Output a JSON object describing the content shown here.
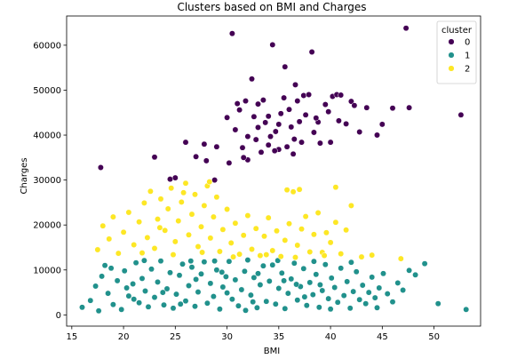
{
  "chart_data": {
    "type": "scatter",
    "title": "Clusters based on BMI and Charges",
    "xlabel": "BMI",
    "ylabel": "Charges",
    "xlim": [
      14.5,
      54.5
    ],
    "ylim": [
      -2500,
      66500
    ],
    "xticks": [
      15,
      20,
      25,
      30,
      35,
      40,
      45,
      50
    ],
    "yticks": [
      0,
      10000,
      20000,
      30000,
      40000,
      50000,
      60000
    ],
    "xtick_labels": [
      "15",
      "20",
      "25",
      "30",
      "35",
      "40",
      "45",
      "50"
    ],
    "ytick_labels": [
      "0",
      "10000",
      "20000",
      "30000",
      "40000",
      "50000",
      "60000"
    ],
    "grid": false,
    "legend": {
      "title": "cluster",
      "placement": "top-right",
      "entries": [
        "0",
        "1",
        "2"
      ]
    },
    "series": [
      {
        "name": "0",
        "color": "#440154",
        "points": [
          [
            17.8,
            32800
          ],
          [
            23.0,
            35100
          ],
          [
            24.5,
            30200
          ],
          [
            25.0,
            30500
          ],
          [
            26.0,
            38400
          ],
          [
            27.0,
            35200
          ],
          [
            27.8,
            38000
          ],
          [
            28.0,
            34300
          ],
          [
            28.8,
            30000
          ],
          [
            29.0,
            37400
          ],
          [
            30.0,
            43900
          ],
          [
            30.5,
            62600
          ],
          [
            30.8,
            41200
          ],
          [
            31.0,
            47000
          ],
          [
            31.2,
            45600
          ],
          [
            31.5,
            37200
          ],
          [
            31.8,
            47600
          ],
          [
            32.0,
            34500
          ],
          [
            32.0,
            39700
          ],
          [
            32.4,
            52500
          ],
          [
            32.6,
            44100
          ],
          [
            33.0,
            46900
          ],
          [
            33.0,
            41700
          ],
          [
            33.3,
            36200
          ],
          [
            33.5,
            47800
          ],
          [
            33.7,
            42800
          ],
          [
            34.0,
            37800
          ],
          [
            34.0,
            44200
          ],
          [
            34.2,
            39700
          ],
          [
            34.4,
            60100
          ],
          [
            34.7,
            40800
          ],
          [
            35.0,
            36800
          ],
          [
            35.0,
            42400
          ],
          [
            35.2,
            44800
          ],
          [
            35.5,
            48300
          ],
          [
            35.6,
            55200
          ],
          [
            35.8,
            37400
          ],
          [
            36.0,
            45700
          ],
          [
            36.2,
            41800
          ],
          [
            36.5,
            39100
          ],
          [
            36.6,
            51200
          ],
          [
            36.8,
            47600
          ],
          [
            37.0,
            43000
          ],
          [
            37.2,
            38400
          ],
          [
            37.4,
            48800
          ],
          [
            37.6,
            44500
          ],
          [
            37.9,
            49000
          ],
          [
            38.2,
            58500
          ],
          [
            38.4,
            40600
          ],
          [
            38.8,
            42900
          ],
          [
            39.0,
            38200
          ],
          [
            39.5,
            46800
          ],
          [
            40.0,
            38400
          ],
          [
            40.2,
            48600
          ],
          [
            40.6,
            49000
          ],
          [
            40.8,
            43200
          ],
          [
            41.0,
            48900
          ],
          [
            41.5,
            42500
          ],
          [
            42.0,
            47500
          ],
          [
            42.3,
            46600
          ],
          [
            42.8,
            40700
          ],
          [
            43.5,
            46100
          ],
          [
            44.5,
            40000
          ],
          [
            45.0,
            42400
          ],
          [
            46.0,
            46000
          ],
          [
            47.3,
            63800
          ],
          [
            47.6,
            46100
          ],
          [
            52.6,
            44500
          ],
          [
            30.2,
            33800
          ],
          [
            31.6,
            35000
          ],
          [
            32.8,
            39000
          ],
          [
            34.6,
            36500
          ],
          [
            36.4,
            35800
          ],
          [
            38.6,
            43800
          ],
          [
            39.8,
            45200
          ]
        ]
      },
      {
        "name": "1",
        "color": "#21918c",
        "points": [
          [
            16.0,
            1700
          ],
          [
            16.8,
            3200
          ],
          [
            17.3,
            6400
          ],
          [
            17.6,
            900
          ],
          [
            17.9,
            8600
          ],
          [
            18.2,
            11000
          ],
          [
            18.5,
            4800
          ],
          [
            19.0,
            2300
          ],
          [
            19.4,
            7600
          ],
          [
            19.8,
            1200
          ],
          [
            20.1,
            9800
          ],
          [
            20.5,
            4200
          ],
          [
            20.9,
            6900
          ],
          [
            21.2,
            11600
          ],
          [
            21.5,
            2700
          ],
          [
            21.8,
            8100
          ],
          [
            22.1,
            5300
          ],
          [
            22.4,
            1800
          ],
          [
            22.7,
            10200
          ],
          [
            23.0,
            3900
          ],
          [
            23.3,
            7300
          ],
          [
            23.6,
            12000
          ],
          [
            23.9,
            2200
          ],
          [
            24.2,
            5800
          ],
          [
            24.5,
            9400
          ],
          [
            24.8,
            1500
          ],
          [
            25.1,
            4600
          ],
          [
            25.4,
            8800
          ],
          [
            25.7,
            11300
          ],
          [
            26.0,
            3100
          ],
          [
            26.3,
            6500
          ],
          [
            26.6,
            10600
          ],
          [
            26.9,
            1900
          ],
          [
            27.2,
            5100
          ],
          [
            27.5,
            9100
          ],
          [
            27.8,
            11800
          ],
          [
            28.1,
            2600
          ],
          [
            28.4,
            7000
          ],
          [
            28.7,
            4100
          ],
          [
            29.0,
            10000
          ],
          [
            29.3,
            1300
          ],
          [
            29.6,
            6200
          ],
          [
            29.9,
            8500
          ],
          [
            30.2,
            11900
          ],
          [
            30.5,
            3500
          ],
          [
            30.8,
            7800
          ],
          [
            31.1,
            2000
          ],
          [
            31.4,
            5600
          ],
          [
            31.7,
            9700
          ],
          [
            32.0,
            12200
          ],
          [
            32.3,
            4400
          ],
          [
            32.6,
            8300
          ],
          [
            32.9,
            1600
          ],
          [
            33.2,
            6700
          ],
          [
            33.5,
            10900
          ],
          [
            33.8,
            3000
          ],
          [
            34.1,
            7500
          ],
          [
            34.4,
            11100
          ],
          [
            34.7,
            2400
          ],
          [
            35.0,
            5900
          ],
          [
            35.3,
            9300
          ],
          [
            35.6,
            1400
          ],
          [
            35.9,
            4800
          ],
          [
            36.2,
            8000
          ],
          [
            36.5,
            11500
          ],
          [
            36.8,
            3300
          ],
          [
            37.1,
            6300
          ],
          [
            37.4,
            10300
          ],
          [
            37.7,
            2100
          ],
          [
            38.0,
            7200
          ],
          [
            38.3,
            4500
          ],
          [
            38.6,
            9000
          ],
          [
            38.9,
            1700
          ],
          [
            39.2,
            5400
          ],
          [
            39.5,
            11200
          ],
          [
            39.8,
            3600
          ],
          [
            40.1,
            8200
          ],
          [
            40.4,
            6100
          ],
          [
            40.7,
            2800
          ],
          [
            41.0,
            10400
          ],
          [
            41.3,
            4300
          ],
          [
            41.6,
            7400
          ],
          [
            41.9,
            1500
          ],
          [
            42.2,
            5200
          ],
          [
            42.5,
            9600
          ],
          [
            42.8,
            3400
          ],
          [
            43.1,
            6600
          ],
          [
            43.4,
            2500
          ],
          [
            43.7,
            5000
          ],
          [
            44.0,
            8400
          ],
          [
            44.3,
            3800
          ],
          [
            44.7,
            6000
          ],
          [
            45.1,
            9200
          ],
          [
            45.5,
            4700
          ],
          [
            46.0,
            2900
          ],
          [
            46.5,
            7100
          ],
          [
            47.0,
            5500
          ],
          [
            47.6,
            9900
          ],
          [
            48.2,
            8900
          ],
          [
            49.1,
            11400
          ],
          [
            50.4,
            2500
          ],
          [
            53.1,
            1200
          ],
          [
            18.8,
            10400
          ],
          [
            20.3,
            6000
          ],
          [
            22.0,
            12100
          ],
          [
            23.8,
            5000
          ],
          [
            25.5,
            2400
          ],
          [
            27.0,
            7900
          ],
          [
            28.8,
            12000
          ],
          [
            30.0,
            4900
          ],
          [
            31.8,
            1000
          ],
          [
            33.0,
            9200
          ],
          [
            34.9,
            12100
          ],
          [
            36.7,
            6800
          ],
          [
            38.4,
            11900
          ],
          [
            40.0,
            1300
          ],
          [
            42.0,
            11700
          ],
          [
            44.5,
            1600
          ],
          [
            21.0,
            3500
          ],
          [
            26.5,
            12000
          ],
          [
            29.5,
            9500
          ],
          [
            32.5,
            2900
          ],
          [
            35.5,
            7600
          ],
          [
            37.5,
            4000
          ],
          [
            39.0,
            6700
          ]
        ]
      },
      {
        "name": "2",
        "color": "#fde725",
        "points": [
          [
            17.5,
            14500
          ],
          [
            18.0,
            19800
          ],
          [
            18.6,
            16900
          ],
          [
            19.0,
            21800
          ],
          [
            19.5,
            13700
          ],
          [
            20.0,
            18400
          ],
          [
            20.5,
            22800
          ],
          [
            21.0,
            15600
          ],
          [
            21.5,
            20700
          ],
          [
            22.0,
            24900
          ],
          [
            22.3,
            17200
          ],
          [
            22.6,
            27500
          ],
          [
            23.0,
            14800
          ],
          [
            23.3,
            21300
          ],
          [
            23.6,
            25800
          ],
          [
            24.0,
            18800
          ],
          [
            24.3,
            23600
          ],
          [
            24.6,
            28200
          ],
          [
            25.0,
            16300
          ],
          [
            25.3,
            20900
          ],
          [
            25.6,
            25100
          ],
          [
            26.0,
            29300
          ],
          [
            26.3,
            17800
          ],
          [
            26.6,
            22400
          ],
          [
            26.9,
            26800
          ],
          [
            27.2,
            15200
          ],
          [
            27.5,
            19600
          ],
          [
            27.8,
            24300
          ],
          [
            28.1,
            28700
          ],
          [
            28.4,
            17100
          ],
          [
            28.7,
            21800
          ],
          [
            29.0,
            26200
          ],
          [
            29.3,
            14100
          ],
          [
            29.6,
            19000
          ],
          [
            30.0,
            23500
          ],
          [
            30.4,
            16000
          ],
          [
            30.8,
            20400
          ],
          [
            31.2,
            13500
          ],
          [
            31.6,
            17700
          ],
          [
            32.0,
            22100
          ],
          [
            32.4,
            14600
          ],
          [
            32.8,
            19200
          ],
          [
            33.2,
            13200
          ],
          [
            33.6,
            17500
          ],
          [
            34.0,
            21600
          ],
          [
            34.4,
            14300
          ],
          [
            34.8,
            18700
          ],
          [
            35.2,
            13000
          ],
          [
            35.6,
            16600
          ],
          [
            36.0,
            20300
          ],
          [
            36.4,
            27400
          ],
          [
            36.8,
            15500
          ],
          [
            37.2,
            19100
          ],
          [
            37.6,
            21900
          ],
          [
            38.0,
            14000
          ],
          [
            38.4,
            17900
          ],
          [
            38.8,
            22700
          ],
          [
            39.2,
            13900
          ],
          [
            39.6,
            18300
          ],
          [
            40.0,
            16100
          ],
          [
            40.5,
            20600
          ],
          [
            41.0,
            13600
          ],
          [
            41.5,
            18900
          ],
          [
            42.0,
            24300
          ],
          [
            43.0,
            12900
          ],
          [
            44.0,
            13300
          ],
          [
            46.8,
            12500
          ],
          [
            21.8,
            13800
          ],
          [
            24.8,
            13400
          ],
          [
            27.6,
            13900
          ],
          [
            30.6,
            12900
          ],
          [
            33.8,
            13400
          ],
          [
            36.6,
            12800
          ],
          [
            39.4,
            13200
          ],
          [
            25.8,
            27200
          ],
          [
            28.3,
            29600
          ],
          [
            35.8,
            27800
          ],
          [
            37.0,
            27900
          ],
          [
            40.5,
            28400
          ],
          [
            23.5,
            19400
          ]
        ]
      }
    ]
  }
}
